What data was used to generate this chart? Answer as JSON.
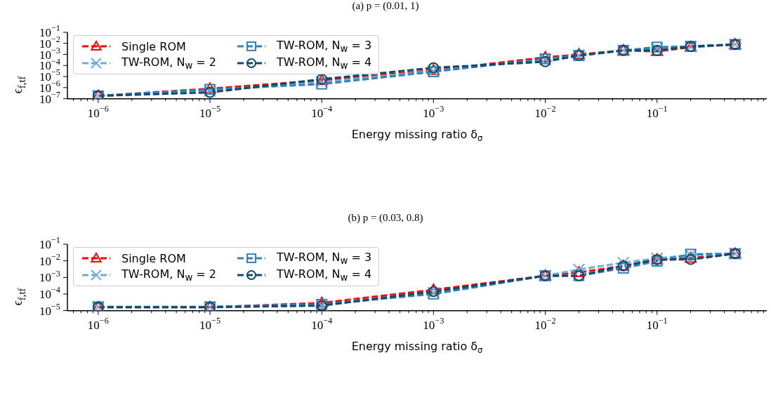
{
  "chart_data": [
    {
      "type": "line",
      "title": "(a) p = (0.01, 1)",
      "xlabel": "Energy missing ratio δ$_{σ}$",
      "ylabel": "ϵ$_{f,t}$$_{f}$",
      "log": "xy",
      "legend": "top left",
      "line_style": "dashed",
      "x": [
        1e-06,
        1e-05,
        0.0001,
        0.001,
        0.01,
        0.02,
        0.05,
        0.1,
        0.2,
        0.5
      ],
      "xlim": [
        5.3e-07,
        0.96
      ],
      "xticks": [
        {
          "value": 6e-07,
          "label": null
        },
        {
          "value": 7e-07,
          "label": null
        },
        {
          "value": 8e-07,
          "label": null
        },
        {
          "value": 9e-07,
          "label": null
        },
        {
          "value": 1e-06,
          "label": "10$^{−6}$"
        },
        {
          "value": 2e-06,
          "label": null
        },
        {
          "value": 3e-06,
          "label": null
        },
        {
          "value": 4e-06,
          "label": null
        },
        {
          "value": 5e-06,
          "label": null
        },
        {
          "value": 6e-06,
          "label": null
        },
        {
          "value": 7e-06,
          "label": null
        },
        {
          "value": 8e-06,
          "label": null
        },
        {
          "value": 9e-06,
          "label": null
        },
        {
          "value": 1e-05,
          "label": "10$^{−5}$"
        },
        {
          "value": 2e-05,
          "label": null
        },
        {
          "value": 3e-05,
          "label": null
        },
        {
          "value": 4e-05,
          "label": null
        },
        {
          "value": 5e-05,
          "label": null
        },
        {
          "value": 6e-05,
          "label": null
        },
        {
          "value": 7e-05,
          "label": null
        },
        {
          "value": 8e-05,
          "label": null
        },
        {
          "value": 9e-05,
          "label": null
        },
        {
          "value": 0.0001,
          "label": "10$^{−4}$"
        },
        {
          "value": 0.0002,
          "label": null
        },
        {
          "value": 0.0003,
          "label": null
        },
        {
          "value": 0.0004,
          "label": null
        },
        {
          "value": 0.0005,
          "label": null
        },
        {
          "value": 0.0006,
          "label": null
        },
        {
          "value": 0.0007,
          "label": null
        },
        {
          "value": 0.0008,
          "label": null
        },
        {
          "value": 0.0009,
          "label": null
        },
        {
          "value": 0.001,
          "label": "10$^{−3}$"
        },
        {
          "value": 0.002,
          "label": null
        },
        {
          "value": 0.003,
          "label": null
        },
        {
          "value": 0.004,
          "label": null
        },
        {
          "value": 0.005,
          "label": null
        },
        {
          "value": 0.006,
          "label": null
        },
        {
          "value": 0.007,
          "label": null
        },
        {
          "value": 0.008,
          "label": null
        },
        {
          "value": 0.009,
          "label": null
        },
        {
          "value": 0.01,
          "label": "10$^{−2}$"
        },
        {
          "value": 0.02,
          "label": null
        },
        {
          "value": 0.03,
          "label": null
        },
        {
          "value": 0.04,
          "label": null
        },
        {
          "value": 0.05,
          "label": null
        },
        {
          "value": 0.06,
          "label": null
        },
        {
          "value": 0.07,
          "label": null
        },
        {
          "value": 0.08,
          "label": null
        },
        {
          "value": 0.09,
          "label": null
        },
        {
          "value": 0.1,
          "label": "10$^{−1}$"
        },
        {
          "value": 0.2,
          "label": null
        },
        {
          "value": 0.3,
          "label": null
        },
        {
          "value": 0.4,
          "label": null
        },
        {
          "value": 0.5,
          "label": null
        },
        {
          "value": 0.6,
          "label": null
        },
        {
          "value": 0.7,
          "label": null
        },
        {
          "value": 0.8,
          "label": null
        },
        {
          "value": 0.9,
          "label": null
        }
      ],
      "ylim": [
        1e-07,
        0.1
      ],
      "yticks": [
        {
          "value": 1e-07,
          "label": "10$^{−7}$"
        },
        {
          "value": 1e-06,
          "label": "10$^{−6}$"
        },
        {
          "value": 1e-05,
          "label": "10$^{−5}$"
        },
        {
          "value": 0.0001,
          "label": "10$^{−4}$"
        },
        {
          "value": 0.001,
          "label": "10$^{−3}$"
        },
        {
          "value": 0.01,
          "label": "10$^{−2}$"
        },
        {
          "value": 0.1,
          "label": "10$^{−1}$"
        }
      ],
      "series": [
        {
          "name": "Single ROM",
          "color": "#ff0000",
          "marker": "triangle",
          "values": [
            1.8e-07,
            8e-07,
            4.5e-06,
            3.7e-05,
            0.00054,
            0.001,
            0.0023,
            0.0019,
            0.0045,
            0.0079
          ]
        },
        {
          "name": "TW-ROM, N$_{w}$ = 2",
          "color": "#6baed6",
          "marker": "cross",
          "values": [
            1.8e-07,
            5e-07,
            3.2e-06,
            3.2e-05,
            0.00035,
            0.0008,
            0.0023,
            0.0035,
            0.0053,
            0.0079
          ]
        },
        {
          "name": "TW-ROM, N$_{w}$ = 3",
          "color": "#3182bd",
          "marker": "square",
          "values": [
            1.8e-07,
            7e-07,
            2.1e-06,
            2.7e-05,
            0.0004,
            0.0008,
            0.0023,
            0.0046,
            0.0053,
            0.0079
          ]
        },
        {
          "name": "TW-ROM, N$_{w}$ = 4",
          "color": "#0b4c6e",
          "marker": "circle",
          "values": [
            1.8e-07,
            3.7e-07,
            5.8e-06,
            6.2e-05,
            0.00022,
            0.0008,
            0.0023,
            0.0023,
            0.0053,
            0.0079
          ]
        }
      ]
    },
    {
      "type": "line",
      "title": "(b) p = (0.03, 0.8)",
      "xlabel": "Energy missing ratio δ$_{σ}$",
      "ylabel": "ϵ$_{f,t}$$_{f}$",
      "log": "xy",
      "legend": "top left",
      "line_style": "dashed",
      "x": [
        1e-06,
        1e-05,
        0.0001,
        0.001,
        0.01,
        0.02,
        0.05,
        0.1,
        0.2,
        0.5
      ],
      "xlim": [
        5.3e-07,
        0.96
      ],
      "xticks": [
        {
          "value": 6e-07,
          "label": null
        },
        {
          "value": 7e-07,
          "label": null
        },
        {
          "value": 8e-07,
          "label": null
        },
        {
          "value": 9e-07,
          "label": null
        },
        {
          "value": 1e-06,
          "label": "10$^{−6}$"
        },
        {
          "value": 2e-06,
          "label": null
        },
        {
          "value": 3e-06,
          "label": null
        },
        {
          "value": 4e-06,
          "label": null
        },
        {
          "value": 5e-06,
          "label": null
        },
        {
          "value": 6e-06,
          "label": null
        },
        {
          "value": 7e-06,
          "label": null
        },
        {
          "value": 8e-06,
          "label": null
        },
        {
          "value": 9e-06,
          "label": null
        },
        {
          "value": 1e-05,
          "label": "10$^{−5}$"
        },
        {
          "value": 2e-05,
          "label": null
        },
        {
          "value": 3e-05,
          "label": null
        },
        {
          "value": 4e-05,
          "label": null
        },
        {
          "value": 5e-05,
          "label": null
        },
        {
          "value": 6e-05,
          "label": null
        },
        {
          "value": 7e-05,
          "label": null
        },
        {
          "value": 8e-05,
          "label": null
        },
        {
          "value": 9e-05,
          "label": null
        },
        {
          "value": 0.0001,
          "label": "10$^{−4}$"
        },
        {
          "value": 0.0002,
          "label": null
        },
        {
          "value": 0.0003,
          "label": null
        },
        {
          "value": 0.0004,
          "label": null
        },
        {
          "value": 0.0005,
          "label": null
        },
        {
          "value": 0.0006,
          "label": null
        },
        {
          "value": 0.0007,
          "label": null
        },
        {
          "value": 0.0008,
          "label": null
        },
        {
          "value": 0.0009,
          "label": null
        },
        {
          "value": 0.001,
          "label": "10$^{−3}$"
        },
        {
          "value": 0.002,
          "label": null
        },
        {
          "value": 0.003,
          "label": null
        },
        {
          "value": 0.004,
          "label": null
        },
        {
          "value": 0.005,
          "label": null
        },
        {
          "value": 0.006,
          "label": null
        },
        {
          "value": 0.007,
          "label": null
        },
        {
          "value": 0.008,
          "label": null
        },
        {
          "value": 0.009,
          "label": null
        },
        {
          "value": 0.01,
          "label": "10$^{−2}$"
        },
        {
          "value": 0.02,
          "label": null
        },
        {
          "value": 0.03,
          "label": null
        },
        {
          "value": 0.04,
          "label": null
        },
        {
          "value": 0.05,
          "label": null
        },
        {
          "value": 0.06,
          "label": null
        },
        {
          "value": 0.07,
          "label": null
        },
        {
          "value": 0.08,
          "label": null
        },
        {
          "value": 0.09,
          "label": null
        },
        {
          "value": 0.1,
          "label": "10$^{−1}$"
        },
        {
          "value": 0.2,
          "label": null
        },
        {
          "value": 0.3,
          "label": null
        },
        {
          "value": 0.4,
          "label": null
        },
        {
          "value": 0.5,
          "label": null
        },
        {
          "value": 0.6,
          "label": null
        },
        {
          "value": 0.7,
          "label": null
        },
        {
          "value": 0.8,
          "label": null
        },
        {
          "value": 0.9,
          "label": null
        }
      ],
      "ylim": [
        1e-05,
        0.1
      ],
      "yticks": [
        {
          "value": 1e-05,
          "label": "10$^{−5}$"
        },
        {
          "value": 0.0001,
          "label": "10$^{−4}$"
        },
        {
          "value": 0.001,
          "label": "10$^{−3}$"
        },
        {
          "value": 0.01,
          "label": "10$^{−2}$"
        },
        {
          "value": 0.1,
          "label": "10$^{−1}$"
        }
      ],
      "series": [
        {
          "name": "Single ROM",
          "color": "#ff0000",
          "marker": "triangle",
          "values": [
            1.6e-05,
            1.6e-05,
            2.9e-05,
            0.00018,
            0.00126,
            0.002,
            0.0049,
            0.012,
            0.0145,
            0.027
          ]
        },
        {
          "name": "TW-ROM, N$_{w}$ = 2",
          "color": "#6baed6",
          "marker": "cross",
          "values": [
            1.6e-05,
            1.6e-05,
            2.1e-05,
            0.00012,
            0.00126,
            0.003,
            0.0077,
            0.014,
            0.022,
            0.027
          ]
        },
        {
          "name": "TW-ROM, N$_{w}$ = 3",
          "color": "#3182bd",
          "marker": "square",
          "values": [
            1.7e-05,
            1.7e-05,
            2.4e-05,
            0.0001,
            0.00126,
            0.00126,
            0.0036,
            0.0095,
            0.025,
            0.027
          ]
        },
        {
          "name": "TW-ROM, N$_{w}$ = 4",
          "color": "#0b4c6e",
          "marker": "circle",
          "values": [
            1.6e-05,
            1.6e-05,
            2e-05,
            0.00014,
            0.00126,
            0.00126,
            0.0049,
            0.0118,
            0.012,
            0.027
          ]
        }
      ]
    }
  ]
}
